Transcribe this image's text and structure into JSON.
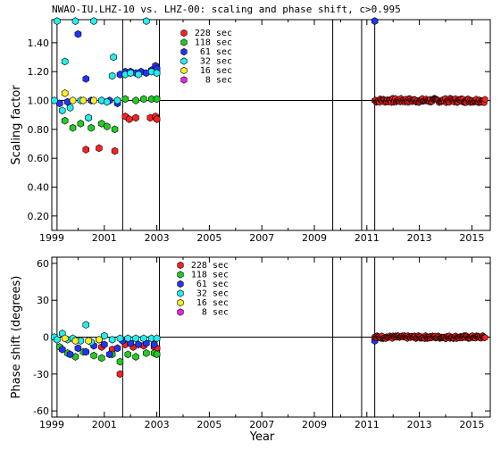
{
  "colors": {
    "s228": "#ff2020",
    "s118": "#22cc22",
    "s61": "#2233ff",
    "s32": "#22eeee",
    "s16": "#ffee22",
    "s8": "#ee22ee"
  },
  "chart_data": [
    {
      "type": "scatter",
      "title": "NWAO-IU.LHZ-10 vs. LHZ-00: scaling and phase shift, c>0.995",
      "xlabel": "",
      "ylabel": "Scaling factor",
      "xlim": [
        1999,
        2015.7
      ],
      "ylim": [
        0.1,
        1.56
      ],
      "xticks": [
        "1999",
        "2001",
        "2003",
        "2005",
        "2007",
        "2009",
        "2011",
        "2013",
        "2015"
      ],
      "yticks": [
        "0.20",
        "0.40",
        "0.60",
        "0.80",
        "1.00",
        "1.20",
        "1.40"
      ],
      "vlines": [
        1999.2,
        2001.7,
        2003.1,
        2009.7,
        2010.8,
        2011.3
      ],
      "hline": 1.0,
      "legend": [
        "228 sec",
        "118 sec",
        "61 sec",
        "32 sec",
        "16 sec",
        "8 sec"
      ],
      "series": [
        {
          "name": "228 sec",
          "color_key": "s228",
          "points": [
            [
              2000.3,
              0.66
            ],
            [
              2000.8,
              0.67
            ],
            [
              2001.4,
              0.65
            ],
            [
              2001.8,
              0.89
            ],
            [
              2001.95,
              0.87
            ],
            [
              2002.2,
              0.88
            ],
            [
              2002.75,
              0.88
            ],
            [
              2002.95,
              0.89
            ],
            [
              2003.0,
              0.87
            ]
          ]
        },
        {
          "name": "118 sec",
          "color_key": "s118",
          "points": [
            [
              1999.5,
              0.86
            ],
            [
              1999.8,
              0.81
            ],
            [
              2000.1,
              0.84
            ],
            [
              2000.4,
              0.88
            ],
            [
              2000.5,
              0.81
            ],
            [
              2000.9,
              0.84
            ],
            [
              2001.1,
              0.82
            ],
            [
              2001.4,
              0.8
            ],
            [
              2001.5,
              1.0
            ],
            [
              2001.8,
              1.01
            ],
            [
              2002.2,
              1.0
            ],
            [
              2002.5,
              1.01
            ],
            [
              2002.8,
              1.01
            ],
            [
              2003.0,
              1.01
            ]
          ]
        },
        {
          "name": "61 sec",
          "color_key": "s61",
          "points": [
            [
              1999.3,
              0.98
            ],
            [
              1999.6,
              0.99
            ],
            [
              2000.0,
              1.46
            ],
            [
              2000.3,
              1.15
            ],
            [
              2000.5,
              1.0
            ],
            [
              2000.9,
              1.0
            ],
            [
              2001.2,
              1.0
            ],
            [
              2001.5,
              0.98
            ],
            [
              2001.6,
              1.18
            ],
            [
              2001.8,
              1.2
            ],
            [
              2002.0,
              1.2
            ],
            [
              2002.2,
              1.19
            ],
            [
              2002.4,
              1.2
            ],
            [
              2002.6,
              1.19
            ],
            [
              2002.8,
              1.21
            ],
            [
              2002.95,
              1.24
            ],
            [
              2003.0,
              1.22
            ],
            [
              2011.3,
              1.55
            ]
          ]
        },
        {
          "name": "32 sec",
          "color_key": "s32",
          "points": [
            [
              1999.1,
              1.0
            ],
            [
              1999.2,
              1.55
            ],
            [
              1999.4,
              0.93
            ],
            [
              1999.5,
              1.27
            ],
            [
              1999.7,
              0.95
            ],
            [
              1999.9,
              1.55
            ],
            [
              2000.1,
              1.0
            ],
            [
              2000.4,
              0.88
            ],
            [
              2000.6,
              1.55
            ],
            [
              2000.9,
              1.0
            ],
            [
              2001.1,
              0.99
            ],
            [
              2001.3,
              1.17
            ],
            [
              2001.35,
              1.3
            ],
            [
              2001.5,
              1.0
            ],
            [
              2001.8,
              1.18
            ],
            [
              2002.0,
              1.19
            ],
            [
              2002.3,
              1.18
            ],
            [
              2002.6,
              1.55
            ],
            [
              2002.8,
              1.2
            ],
            [
              2003.0,
              1.19
            ]
          ]
        },
        {
          "name": "16 sec",
          "color_key": "s16",
          "points": [
            [
              1999.5,
              1.05
            ],
            [
              1999.8,
              1.0
            ],
            [
              2000.2,
              1.0
            ],
            [
              2000.6,
              1.0
            ]
          ]
        },
        {
          "name": "8 sec",
          "color_key": "s8",
          "points": []
        },
        {
          "name": "228 sec (2011-2015)",
          "color_key": "s228",
          "continuous": true,
          "start": 2011.3,
          "end": 2015.5,
          "mean": 1.0,
          "spread": 0.015
        }
      ]
    },
    {
      "type": "scatter",
      "title": "",
      "xlabel": "Year",
      "ylabel": "Phase shift (degrees)",
      "xlim": [
        1999,
        2015.7
      ],
      "ylim": [
        -65,
        65
      ],
      "xticks": [
        "1999",
        "2001",
        "2003",
        "2005",
        "2007",
        "2009",
        "2011",
        "2013",
        "2015"
      ],
      "yticks": [
        "60",
        "30",
        "0",
        "-30",
        "-60"
      ],
      "vlines": [
        1999.2,
        2001.7,
        2003.1,
        2009.7,
        2010.8,
        2011.3
      ],
      "hline": 0,
      "legend": [
        "228 sec",
        "118 sec",
        "61 sec",
        "32 sec",
        "16 sec",
        "8 sec"
      ],
      "series": [
        {
          "name": "228 sec",
          "color_key": "s228",
          "points": [
            [
              2000.9,
              -8
            ],
            [
              2001.3,
              -10
            ],
            [
              2001.6,
              -30
            ],
            [
              2001.8,
              -6
            ],
            [
              2002.1,
              -8
            ],
            [
              2002.5,
              -7
            ],
            [
              2002.9,
              -8
            ],
            [
              2003.0,
              -9
            ]
          ]
        },
        {
          "name": "118 sec",
          "color_key": "s118",
          "points": [
            [
              1999.3,
              -8
            ],
            [
              1999.6,
              -13
            ],
            [
              1999.9,
              -16
            ],
            [
              2000.2,
              -12
            ],
            [
              2000.6,
              -15
            ],
            [
              2000.9,
              -17
            ],
            [
              2001.3,
              -14
            ],
            [
              2001.6,
              -20
            ],
            [
              2001.9,
              -14
            ],
            [
              2002.2,
              -16
            ],
            [
              2002.6,
              -13
            ],
            [
              2002.9,
              -13
            ],
            [
              2003.0,
              -14
            ]
          ]
        },
        {
          "name": "61 sec",
          "color_key": "s61",
          "points": [
            [
              1999.4,
              -10
            ],
            [
              1999.7,
              -14
            ],
            [
              2000.0,
              -9
            ],
            [
              2000.3,
              -12
            ],
            [
              2000.6,
              -7
            ],
            [
              2001.0,
              -6
            ],
            [
              2001.2,
              -14
            ],
            [
              2001.5,
              -9
            ],
            [
              2001.7,
              -3
            ],
            [
              2002.0,
              -5
            ],
            [
              2002.3,
              -6
            ],
            [
              2002.6,
              -5
            ],
            [
              2002.9,
              -6
            ],
            [
              2011.3,
              -3
            ]
          ]
        },
        {
          "name": "32 sec",
          "color_key": "s32",
          "points": [
            [
              1999.1,
              0
            ],
            [
              1999.2,
              -2
            ],
            [
              1999.4,
              3
            ],
            [
              1999.6,
              -2
            ],
            [
              1999.8,
              -1
            ],
            [
              2000.1,
              -3
            ],
            [
              2000.3,
              10
            ],
            [
              2000.5,
              -4
            ],
            [
              2000.8,
              -2
            ],
            [
              2001.0,
              1
            ],
            [
              2001.3,
              -2
            ],
            [
              2001.6,
              -1
            ],
            [
              2001.9,
              -1
            ],
            [
              2002.2,
              -1
            ],
            [
              2002.5,
              -1
            ],
            [
              2002.8,
              -1
            ],
            [
              2003.0,
              -1
            ]
          ]
        },
        {
          "name": "16 sec",
          "color_key": "s16",
          "points": [
            [
              1999.5,
              -1
            ],
            [
              1999.9,
              -3
            ],
            [
              2000.4,
              -3
            ],
            [
              2000.8,
              -2
            ]
          ]
        },
        {
          "name": "8 sec",
          "color_key": "s8",
          "points": []
        },
        {
          "name": "228 sec (2011-2015)",
          "color_key": "s228",
          "continuous": true,
          "start": 2011.3,
          "end": 2015.5,
          "mean": 0,
          "spread": 1.2
        }
      ]
    }
  ]
}
